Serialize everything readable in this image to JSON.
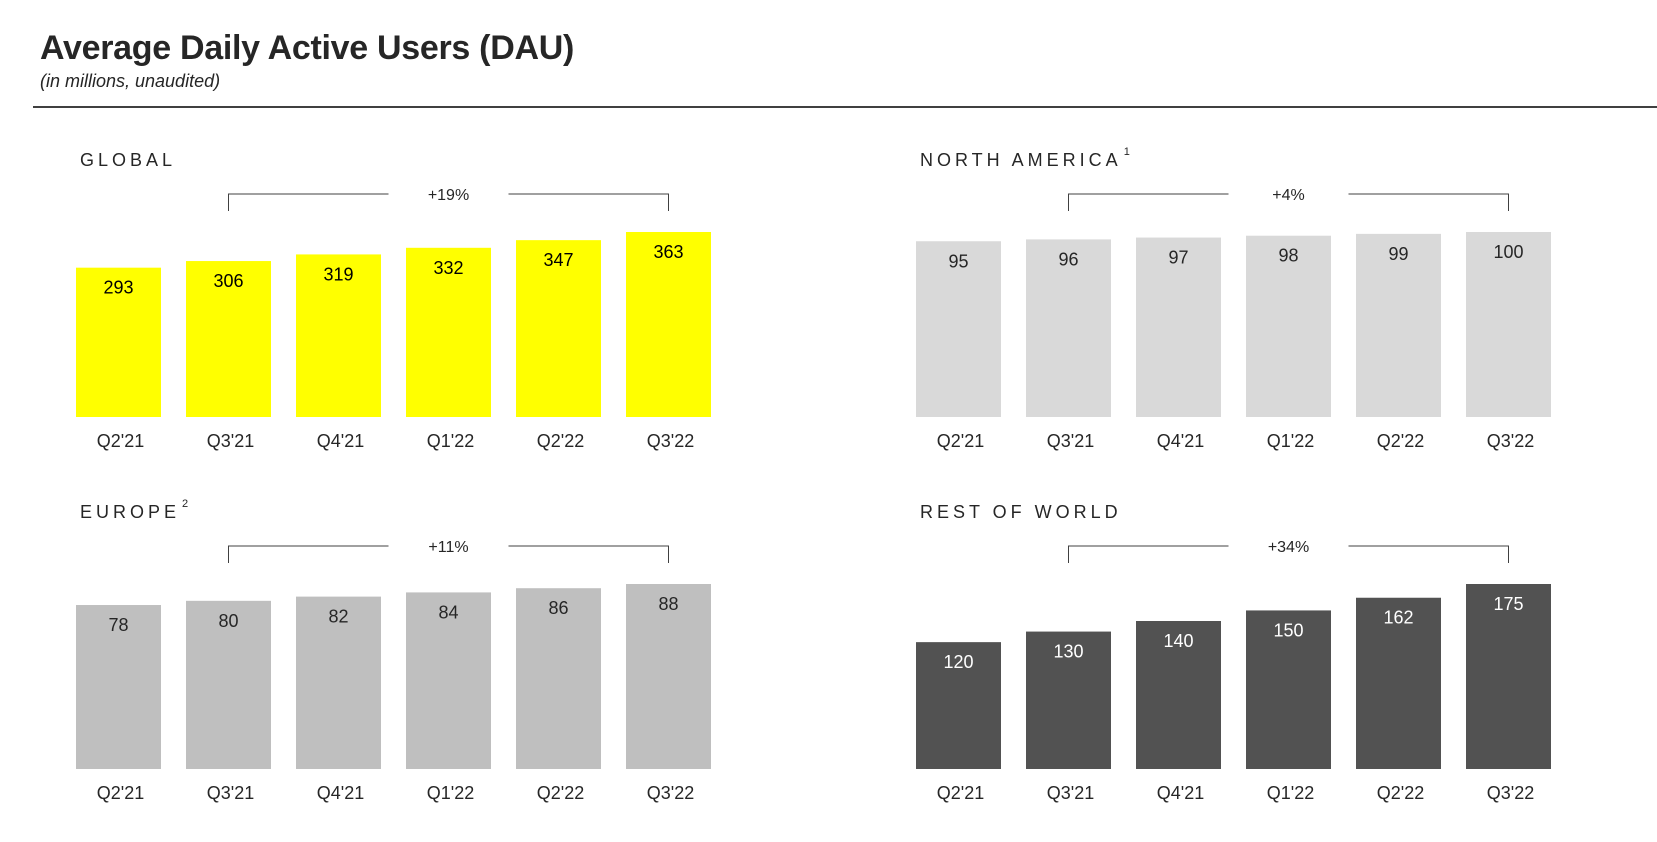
{
  "header": {
    "title": "Average Daily Active Users (DAU)",
    "subtitle": "(in millions, unaudited)"
  },
  "chart_data": [
    {
      "type": "bar",
      "title": "GLOBAL",
      "title_sup": "",
      "categories": [
        "Q2'21",
        "Q3'21",
        "Q4'21",
        "Q1'22",
        "Q2'22",
        "Q3'22"
      ],
      "values": [
        293,
        306,
        319,
        332,
        347,
        363
      ],
      "growth_label": "+19%",
      "bar_color": "#FFFF00",
      "label_color": "#000000"
    },
    {
      "type": "bar",
      "title": "NORTH AMERICA",
      "title_sup": "1",
      "categories": [
        "Q2'21",
        "Q3'21",
        "Q4'21",
        "Q1'22",
        "Q2'22",
        "Q3'22"
      ],
      "values": [
        95,
        96,
        97,
        98,
        99,
        100
      ],
      "growth_label": "+4%",
      "bar_color": "#D9D9D9",
      "label_color": "#262626"
    },
    {
      "type": "bar",
      "title": "EUROPE",
      "title_sup": "2",
      "categories": [
        "Q2'21",
        "Q3'21",
        "Q4'21",
        "Q1'22",
        "Q2'22",
        "Q3'22"
      ],
      "values": [
        78,
        80,
        82,
        84,
        86,
        88
      ],
      "growth_label": "+11%",
      "bar_color": "#BFBFBF",
      "label_color": "#262626"
    },
    {
      "type": "bar",
      "title": "REST OF WORLD",
      "title_sup": "",
      "categories": [
        "Q2'21",
        "Q3'21",
        "Q4'21",
        "Q1'22",
        "Q2'22",
        "Q3'22"
      ],
      "values": [
        120,
        130,
        140,
        150,
        162,
        175
      ],
      "growth_label": "+34%",
      "bar_color": "#525252",
      "label_color": "#FFFFFF"
    }
  ]
}
